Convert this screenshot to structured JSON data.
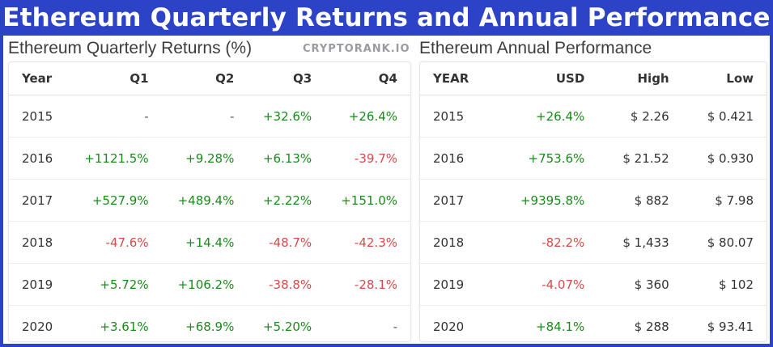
{
  "title": "Ethereum Quarterly Returns and Annual Performance",
  "quarterly": {
    "label": "Ethereum Quarterly Returns (%)",
    "brand": "CRYPTORANK.IO",
    "headers": [
      "Year",
      "Q1",
      "Q2",
      "Q3",
      "Q4"
    ],
    "rows": [
      [
        "2015",
        "-",
        "-",
        "+32.6%",
        "+26.4%"
      ],
      [
        "2016",
        "+1121.5%",
        "+9.28%",
        "+6.13%",
        "-39.7%"
      ],
      [
        "2017",
        "+527.9%",
        "+489.4%",
        "+2.22%",
        "+151.0%"
      ],
      [
        "2018",
        "-47.6%",
        "+14.4%",
        "-48.7%",
        "-42.3%"
      ],
      [
        "2019",
        "+5.72%",
        "+106.2%",
        "-38.8%",
        "-28.1%"
      ],
      [
        "2020",
        "+3.61%",
        "+68.9%",
        "+5.20%",
        "-"
      ]
    ]
  },
  "annual": {
    "label": "Ethereum Annual Performance",
    "headers": [
      "YEAR",
      "USD",
      "High",
      "Low"
    ],
    "rows": [
      [
        "2015",
        "+26.4%",
        "$ 2.26",
        "$ 0.421"
      ],
      [
        "2016",
        "+753.6%",
        "$ 21.52",
        "$ 0.930"
      ],
      [
        "2017",
        "+9395.8%",
        "$ 882",
        "$ 7.98"
      ],
      [
        "2018",
        "-82.2%",
        "$ 1,433",
        "$ 80.07"
      ],
      [
        "2019",
        "-4.07%",
        "$ 360",
        "$ 102"
      ],
      [
        "2020",
        "+84.1%",
        "$ 288",
        "$ 93.41"
      ]
    ]
  },
  "colors": {
    "background": "#2d43c7",
    "positive": "#1a8a1a",
    "negative": "#d64a4a"
  }
}
